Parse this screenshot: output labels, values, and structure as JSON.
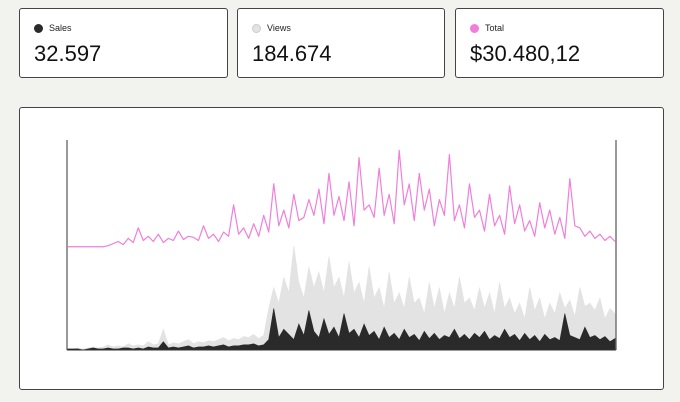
{
  "cards": [
    {
      "label": "Sales",
      "value": "32.597"
    },
    {
      "label": "Views",
      "value": "184.674"
    },
    {
      "label": "Total",
      "value": "$30.480,12"
    }
  ],
  "chart_data": [
    {
      "type": "line",
      "ylim": [
        -5,
        100
      ],
      "series": [
        {
          "color": "#f07fd9",
          "values": [
            0,
            0,
            0,
            0,
            0,
            0,
            0,
            0,
            1,
            3,
            5,
            2,
            8,
            4,
            18,
            6,
            10,
            5,
            12,
            4,
            8,
            6,
            15,
            7,
            10,
            9,
            6,
            20,
            8,
            12,
            5,
            14,
            10,
            40,
            12,
            18,
            8,
            22,
            10,
            30,
            14,
            60,
            20,
            35,
            18,
            50,
            25,
            28,
            45,
            30,
            55,
            22,
            70,
            30,
            48,
            25,
            62,
            20,
            85,
            35,
            40,
            28,
            75,
            30,
            50,
            22,
            92,
            40,
            60,
            25,
            70,
            35,
            55,
            20,
            45,
            30,
            88,
            25,
            40,
            18,
            60,
            28,
            35,
            15,
            50,
            20,
            30,
            12,
            58,
            22,
            40,
            15,
            25,
            10,
            42,
            18,
            35,
            12,
            28,
            8,
            65,
            20,
            18,
            10,
            15,
            8,
            12,
            6,
            10,
            5
          ]
        }
      ]
    },
    {
      "type": "area",
      "ylim": [
        0,
        100
      ],
      "series": [
        {
          "color": "#e3e3e3",
          "values": [
            1,
            1,
            2,
            1,
            2,
            3,
            2,
            3,
            5,
            3,
            4,
            3,
            6,
            4,
            5,
            4,
            8,
            5,
            6,
            20,
            5,
            7,
            6,
            8,
            10,
            6,
            8,
            7,
            9,
            8,
            10,
            12,
            9,
            11,
            10,
            13,
            12,
            15,
            11,
            14,
            40,
            60,
            45,
            70,
            55,
            100,
            65,
            50,
            80,
            60,
            75,
            55,
            90,
            60,
            70,
            50,
            85,
            55,
            65,
            45,
            80,
            50,
            60,
            40,
            75,
            45,
            55,
            40,
            70,
            45,
            50,
            35,
            65,
            40,
            60,
            35,
            55,
            40,
            70,
            45,
            50,
            38,
            60,
            40,
            55,
            35,
            65,
            40,
            50,
            35,
            45,
            30,
            60,
            38,
            50,
            30,
            45,
            35,
            55,
            40,
            48,
            32,
            60,
            42,
            45,
            38,
            50,
            30,
            40,
            35
          ]
        },
        {
          "color": "#2a2a2a",
          "values": [
            1,
            1,
            1,
            0,
            1,
            2,
            1,
            1,
            2,
            1,
            1,
            2,
            2,
            1,
            2,
            1,
            3,
            2,
            2,
            8,
            2,
            3,
            2,
            3,
            4,
            2,
            3,
            3,
            4,
            3,
            4,
            5,
            3,
            4,
            4,
            5,
            5,
            6,
            4,
            5,
            10,
            40,
            12,
            20,
            15,
            10,
            25,
            14,
            38,
            18,
            12,
            30,
            15,
            22,
            12,
            35,
            16,
            20,
            12,
            25,
            14,
            18,
            10,
            22,
            12,
            16,
            10,
            20,
            12,
            15,
            9,
            18,
            11,
            16,
            10,
            14,
            12,
            20,
            11,
            15,
            10,
            16,
            12,
            18,
            10,
            14,
            11,
            20,
            12,
            15,
            9,
            16,
            10,
            14,
            8,
            15,
            10,
            12,
            9,
            35,
            14,
            12,
            10,
            22,
            12,
            14,
            10,
            13,
            8,
            11
          ]
        }
      ]
    }
  ]
}
